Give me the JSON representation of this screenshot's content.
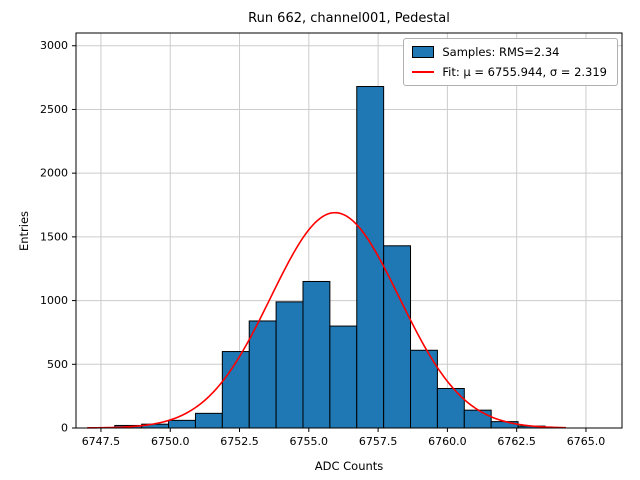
{
  "chart_data": {
    "type": "histogram",
    "title": "Run 662, channel001, Pedestal",
    "xlabel": "ADC Counts",
    "ylabel": "Entries",
    "xlim": [
      6746.6,
      6766.3
    ],
    "ylim": [
      0,
      3100
    ],
    "grid": true,
    "grid_color": "#cccccc",
    "x_ticks": {
      "values": [
        6747.5,
        6750.0,
        6752.5,
        6755.0,
        6757.5,
        6760.0,
        6762.5,
        6765.0
      ],
      "labels": [
        "6747.5",
        "6750.0",
        "6752.5",
        "6755.0",
        "6757.5",
        "6760.0",
        "6762.5",
        "6765.0"
      ]
    },
    "y_ticks": {
      "values": [
        0,
        500,
        1000,
        1500,
        2000,
        2500,
        3000
      ],
      "labels": [
        "0",
        "500",
        "1000",
        "1500",
        "2000",
        "2500",
        "3000"
      ]
    },
    "histogram": {
      "bin_start": 6748.0,
      "bin_width": 0.97,
      "counts": [
        20,
        30,
        60,
        115,
        600,
        840,
        990,
        1150,
        800,
        2680,
        1430,
        610,
        310,
        140,
        50,
        15
      ],
      "fill_color": "#1f77b4",
      "edge_color": "#000000"
    },
    "fit": {
      "type": "gaussian",
      "mu": 6755.944,
      "sigma": 2.319,
      "amplitude": 1690,
      "color": "#ff0000",
      "x_range": [
        6747.0,
        6764.3
      ]
    },
    "legend": [
      {
        "label": "Samples: RMS=2.34",
        "swatch": "patch",
        "color": "#1f77b4"
      },
      {
        "label": "Fit: μ = 6755.944, σ = 2.319",
        "swatch": "line",
        "color": "#ff0000"
      }
    ],
    "legend_position": "upper right"
  }
}
